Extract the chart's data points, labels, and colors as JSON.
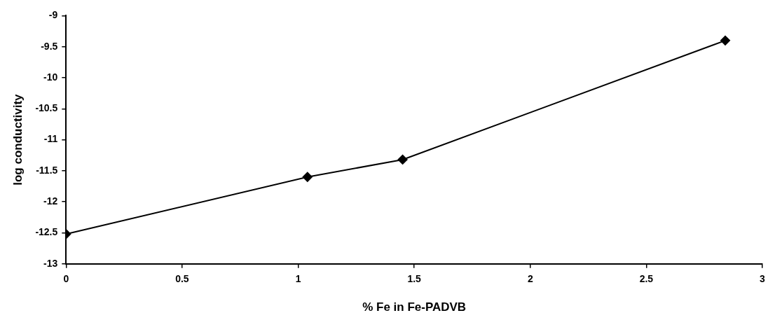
{
  "chart_data": {
    "type": "line",
    "xlabel": "% Fe in Fe-PADVB",
    "ylabel": "log conductivity",
    "x": [
      0,
      1.04,
      1.45,
      2.84
    ],
    "series": [
      {
        "color": "#000000",
        "values": [
          -12.52,
          -11.6,
          -11.32,
          -9.4
        ]
      }
    ],
    "xlim": [
      0,
      3
    ],
    "xticks": [
      0,
      0.5,
      1,
      1.5,
      2,
      2.5,
      3
    ],
    "ylim": [
      -13,
      -9
    ],
    "yticks": [
      -13,
      -12.5,
      -12,
      -11.5,
      -11,
      -10.5,
      -10,
      -9.5,
      -9
    ],
    "grid": false,
    "legend": false,
    "marker": "diamond",
    "line_style": "solid"
  }
}
